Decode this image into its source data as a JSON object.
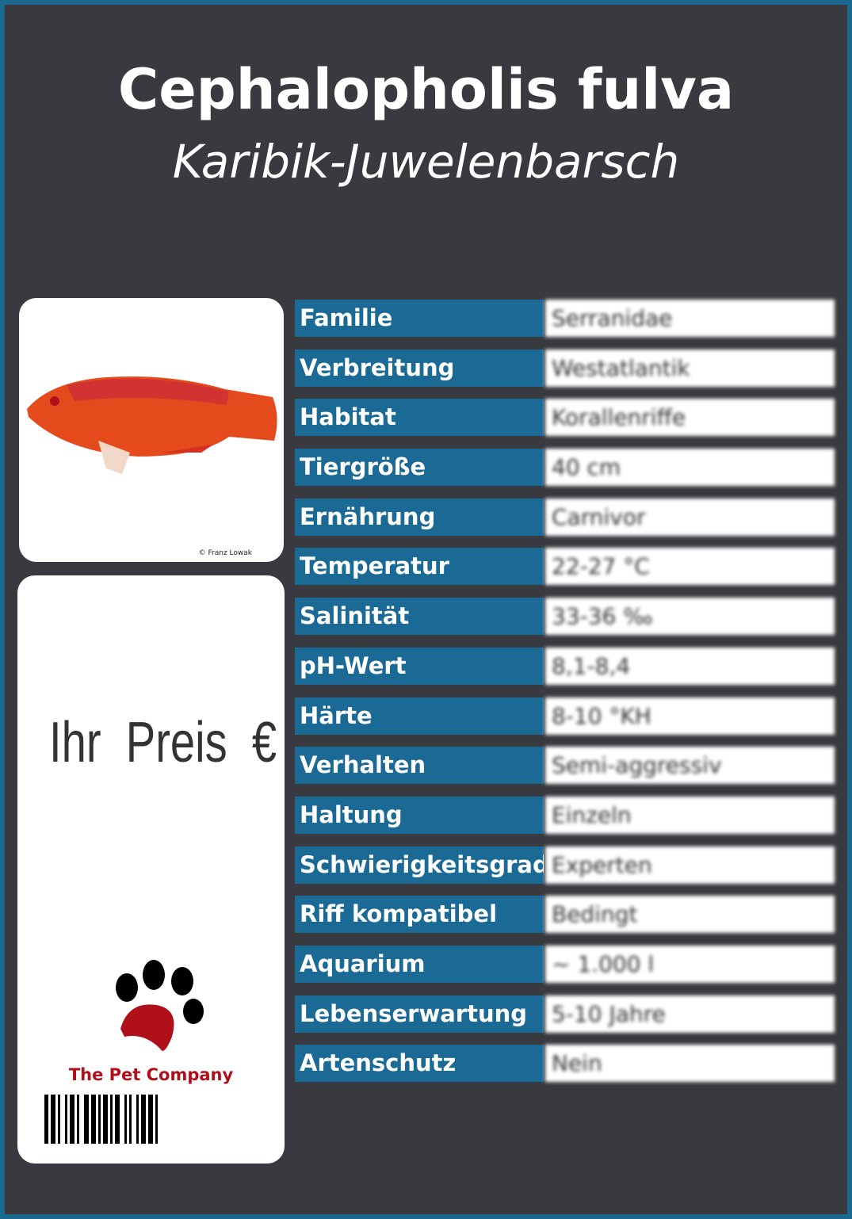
{
  "header": {
    "title": "Cephalopholis fulva",
    "subtitle": "Karibik-Juwelenbarsch"
  },
  "photo": {
    "credit": "© Franz Lowak",
    "fish_colors": [
      "#e0401a",
      "#f07a20"
    ]
  },
  "price": {
    "label": "Ihr Preis €"
  },
  "brand": {
    "name": "The Pet Company",
    "accent": "#b0101a"
  },
  "colors": {
    "label_bg": "#1b6a96",
    "background": "#393a3f"
  },
  "rows": [
    {
      "label": "Familie",
      "value": "Serranidae"
    },
    {
      "label": "Verbreitung",
      "value": "Westatlantik"
    },
    {
      "label": "Habitat",
      "value": "Korallenriffe"
    },
    {
      "label": "Tiergröße",
      "value": "40 cm"
    },
    {
      "label": "Ernährung",
      "value": "Carnivor"
    },
    {
      "label": "Temperatur",
      "value": "22-27 °C"
    },
    {
      "label": "Salinität",
      "value": "33-36 ‰"
    },
    {
      "label": "pH-Wert",
      "value": "8,1-8,4"
    },
    {
      "label": "Härte",
      "value": "8-10 °KH"
    },
    {
      "label": "Verhalten",
      "value": "Semi-aggressiv"
    },
    {
      "label": "Haltung",
      "value": "Einzeln"
    },
    {
      "label": "Schwierigkeitsgrad",
      "value": "Experten"
    },
    {
      "label": "Riff kompatibel",
      "value": "Bedingt"
    },
    {
      "label": "Aquarium",
      "value": "~ 1.000 l"
    },
    {
      "label": "Lebenserwartung",
      "value": "5-10 Jahre"
    },
    {
      "label": "Artenschutz",
      "value": "Nein"
    }
  ]
}
